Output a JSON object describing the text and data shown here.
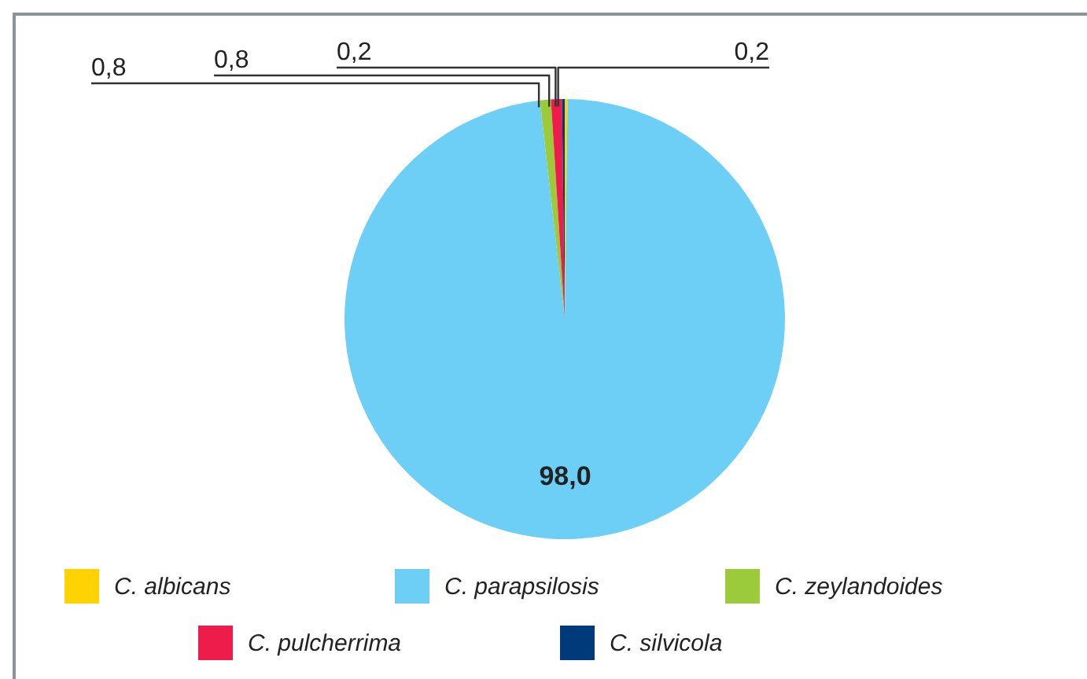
{
  "chart_data": {
    "type": "pie",
    "categories": [
      "C. albicans",
      "C. parapsilosis",
      "C. zeylandoides",
      "C. pulcherrima",
      "C. silvicola"
    ],
    "values": [
      0.2,
      98.0,
      0.8,
      0.8,
      0.2
    ],
    "colors": [
      "#ffd200",
      "#6dcff6",
      "#9bca3b",
      "#ed1c4a",
      "#003a7a"
    ],
    "value_labels": [
      "0,2",
      "98,0",
      "0,8",
      "0,8",
      "0,2"
    ],
    "legend": "bottom"
  }
}
